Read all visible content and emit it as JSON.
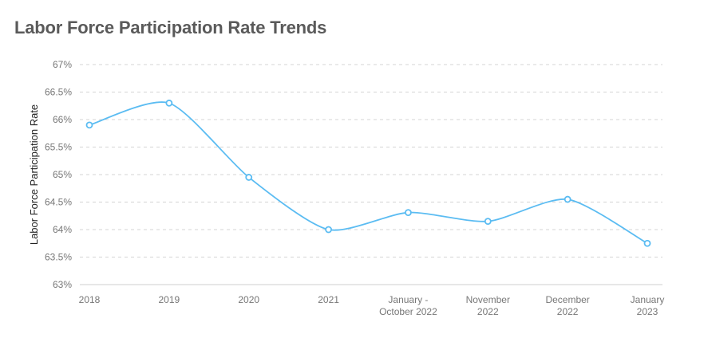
{
  "chart_data": {
    "type": "line",
    "title": "Labor Force Participation Rate Trends",
    "xlabel": "",
    "ylabel": "Labor Force Participation Rate",
    "categories": [
      [
        "2018"
      ],
      [
        "2019"
      ],
      [
        "2020"
      ],
      [
        "2021"
      ],
      [
        "January -",
        "October 2022"
      ],
      [
        "November",
        "2022"
      ],
      [
        "December",
        "2022"
      ],
      [
        "January",
        "2023"
      ]
    ],
    "series": [
      {
        "values": [
          65.9,
          66.3,
          64.95,
          64.0,
          64.31,
          64.15,
          64.55,
          63.75
        ]
      }
    ],
    "ylim": [
      63,
      67
    ],
    "yticks": [
      63,
      63.5,
      64,
      64.5,
      65,
      65.5,
      66,
      66.5,
      67
    ],
    "ytick_labels": [
      "63%",
      "63.5%",
      "64%",
      "64.5%",
      "65%",
      "65.5%",
      "66%",
      "66.5%",
      "67%"
    ],
    "grid": true,
    "line_color": "#5bbcf2",
    "grid_color": "#d4d4d4"
  }
}
